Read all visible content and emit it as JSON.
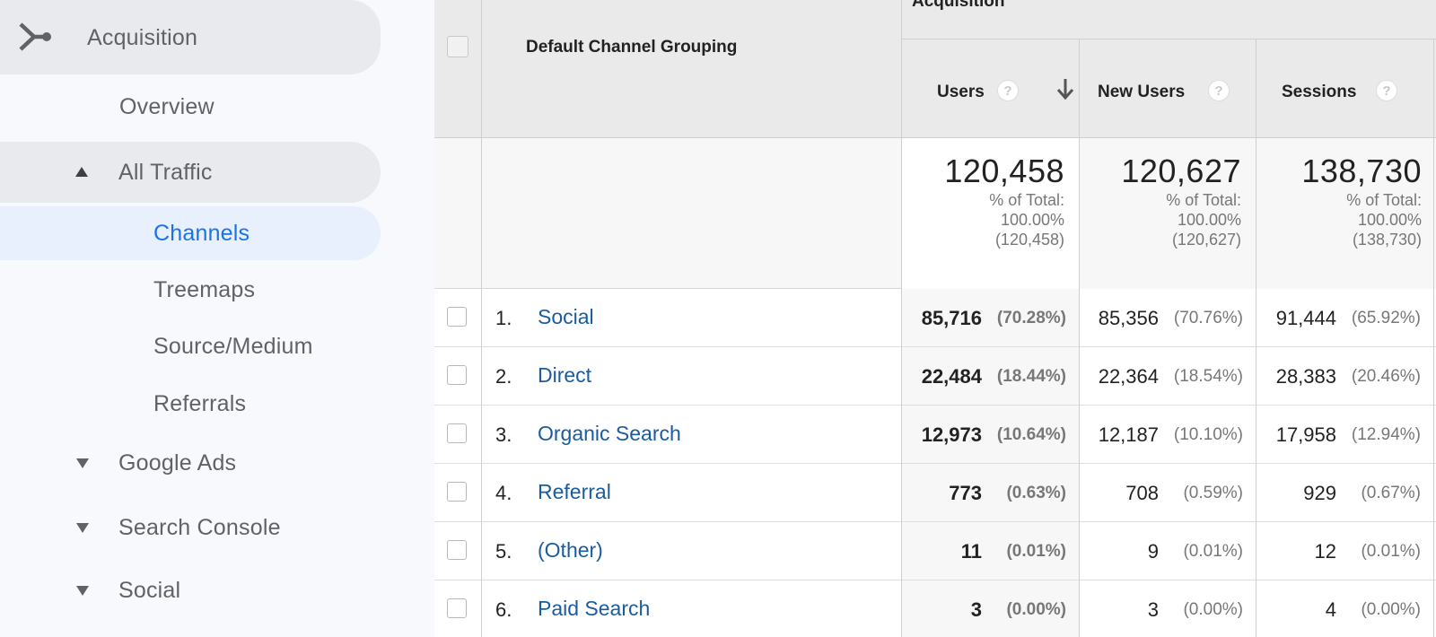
{
  "sidebar": {
    "acquisition": "Acquisition",
    "overview": "Overview",
    "all_traffic": "All Traffic",
    "channels": "Channels",
    "treemaps": "Treemaps",
    "source_medium": "Source/Medium",
    "referrals": "Referrals",
    "google_ads": "Google Ads",
    "search_console": "Search Console",
    "social": "Social"
  },
  "table": {
    "group_header": "Acquisition",
    "dimension_header": "Default Channel Grouping",
    "columns": [
      {
        "label": "Users",
        "help": "?"
      },
      {
        "label": "New Users",
        "help": "?"
      },
      {
        "label": "Sessions",
        "help": "?"
      }
    ],
    "totals": [
      {
        "value": "120,458",
        "pct_label": "% of Total:",
        "pct": "100.00%",
        "total": "(120,458)"
      },
      {
        "value": "120,627",
        "pct_label": "% of Total:",
        "pct": "100.00%",
        "total": "(120,627)"
      },
      {
        "value": "138,730",
        "pct_label": "% of Total:",
        "pct": "100.00%",
        "total": "(138,730)"
      }
    ],
    "rows": [
      {
        "idx": "1.",
        "name": "Social",
        "users": "85,716",
        "users_pct": "(70.28%)",
        "new_users": "85,356",
        "new_users_pct": "(70.76%)",
        "sessions": "91,444",
        "sessions_pct": "(65.92%)"
      },
      {
        "idx": "2.",
        "name": "Direct",
        "users": "22,484",
        "users_pct": "(18.44%)",
        "new_users": "22,364",
        "new_users_pct": "(18.54%)",
        "sessions": "28,383",
        "sessions_pct": "(20.46%)"
      },
      {
        "idx": "3.",
        "name": "Organic Search",
        "users": "12,973",
        "users_pct": "(10.64%)",
        "new_users": "12,187",
        "new_users_pct": "(10.10%)",
        "sessions": "17,958",
        "sessions_pct": "(12.94%)"
      },
      {
        "idx": "4.",
        "name": "Referral",
        "users": "773",
        "users_pct": "(0.63%)",
        "new_users": "708",
        "new_users_pct": "(0.59%)",
        "sessions": "929",
        "sessions_pct": "(0.67%)"
      },
      {
        "idx": "5.",
        "name": "(Other)",
        "users": "11",
        "users_pct": "(0.01%)",
        "new_users": "9",
        "new_users_pct": "(0.01%)",
        "sessions": "12",
        "sessions_pct": "(0.01%)"
      },
      {
        "idx": "6.",
        "name": "Paid Search",
        "users": "3",
        "users_pct": "(0.00%)",
        "new_users": "3",
        "new_users_pct": "(0.00%)",
        "sessions": "4",
        "sessions_pct": "(0.00%)"
      }
    ]
  },
  "colors": {
    "accent": "#1a73e8",
    "link": "#1a5ca0",
    "sidebar_bg": "#f7f9fc"
  }
}
